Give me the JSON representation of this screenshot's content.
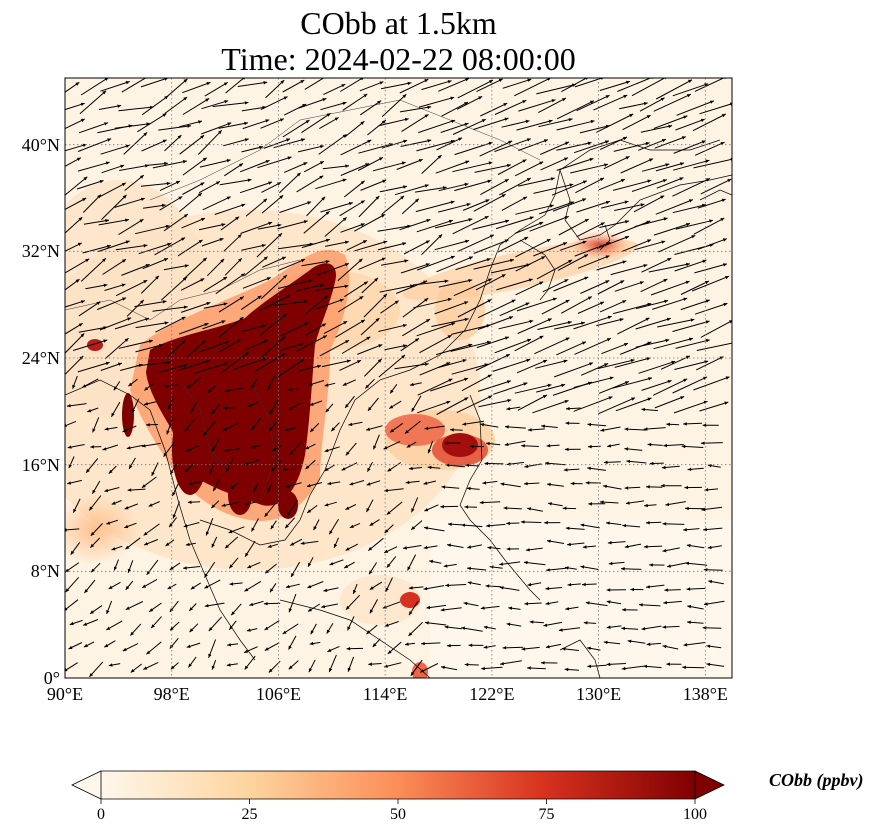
{
  "title": {
    "line1": "CObb at 1.5km",
    "line2": "Time: 2024-02-22 08:00:00"
  },
  "map": {
    "projection": "PlateCarree",
    "extent": {
      "lon_min": 90,
      "lon_max": 140,
      "lat_min": 0,
      "lat_max": 45
    },
    "gridlines": "dotted",
    "coastlines": true,
    "borders": true,
    "colormap": "OrRd",
    "overlay": "wind-vectors"
  },
  "axes": {
    "x_ticks": [
      {
        "value": 90,
        "label": "90°E"
      },
      {
        "value": 98,
        "label": "98°E"
      },
      {
        "value": 106,
        "label": "106°E"
      },
      {
        "value": 114,
        "label": "114°E"
      },
      {
        "value": 122,
        "label": "122°E"
      },
      {
        "value": 130,
        "label": "130°E"
      },
      {
        "value": 138,
        "label": "138°E"
      }
    ],
    "y_ticks": [
      {
        "value": 0,
        "label": "0°"
      },
      {
        "value": 8,
        "label": "8°N"
      },
      {
        "value": 16,
        "label": "16°N"
      },
      {
        "value": 24,
        "label": "24°N"
      },
      {
        "value": 32,
        "label": "32°N"
      },
      {
        "value": 40,
        "label": "40°N"
      }
    ]
  },
  "colorbar": {
    "title": "CObb (ppbv)",
    "min": 0,
    "max": 100,
    "extend": "both",
    "ticks": [
      {
        "value": 0,
        "label": "0"
      },
      {
        "value": 25,
        "label": "25"
      },
      {
        "value": 50,
        "label": "50"
      },
      {
        "value": 75,
        "label": "75"
      },
      {
        "value": 100,
        "label": "100"
      }
    ],
    "colors": [
      "#fff7ec",
      "#fdd49e",
      "#fc8d59",
      "#d7301f",
      "#7f0000"
    ]
  }
}
